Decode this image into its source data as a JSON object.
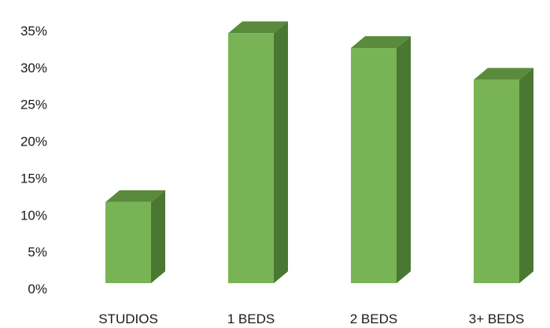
{
  "chart_data": {
    "type": "bar",
    "style": "3d-column",
    "categories": [
      "STUDIOS",
      "1 BEDS",
      "2 BEDS",
      "3+ BEDS"
    ],
    "values": [
      11,
      33.9,
      31.9,
      27.6
    ],
    "y_tick_labels": [
      "0%",
      "5%",
      "10%",
      "15%",
      "20%",
      "25%",
      "30%",
      "35%"
    ],
    "ylim": [
      0,
      35
    ],
    "y_unit": "%",
    "title": "",
    "xlabel": "",
    "ylabel": "",
    "grid": false,
    "legend": "none",
    "colors": {
      "front": "#78b455",
      "top": "#5a8b3c",
      "side": "#4a7732"
    }
  }
}
